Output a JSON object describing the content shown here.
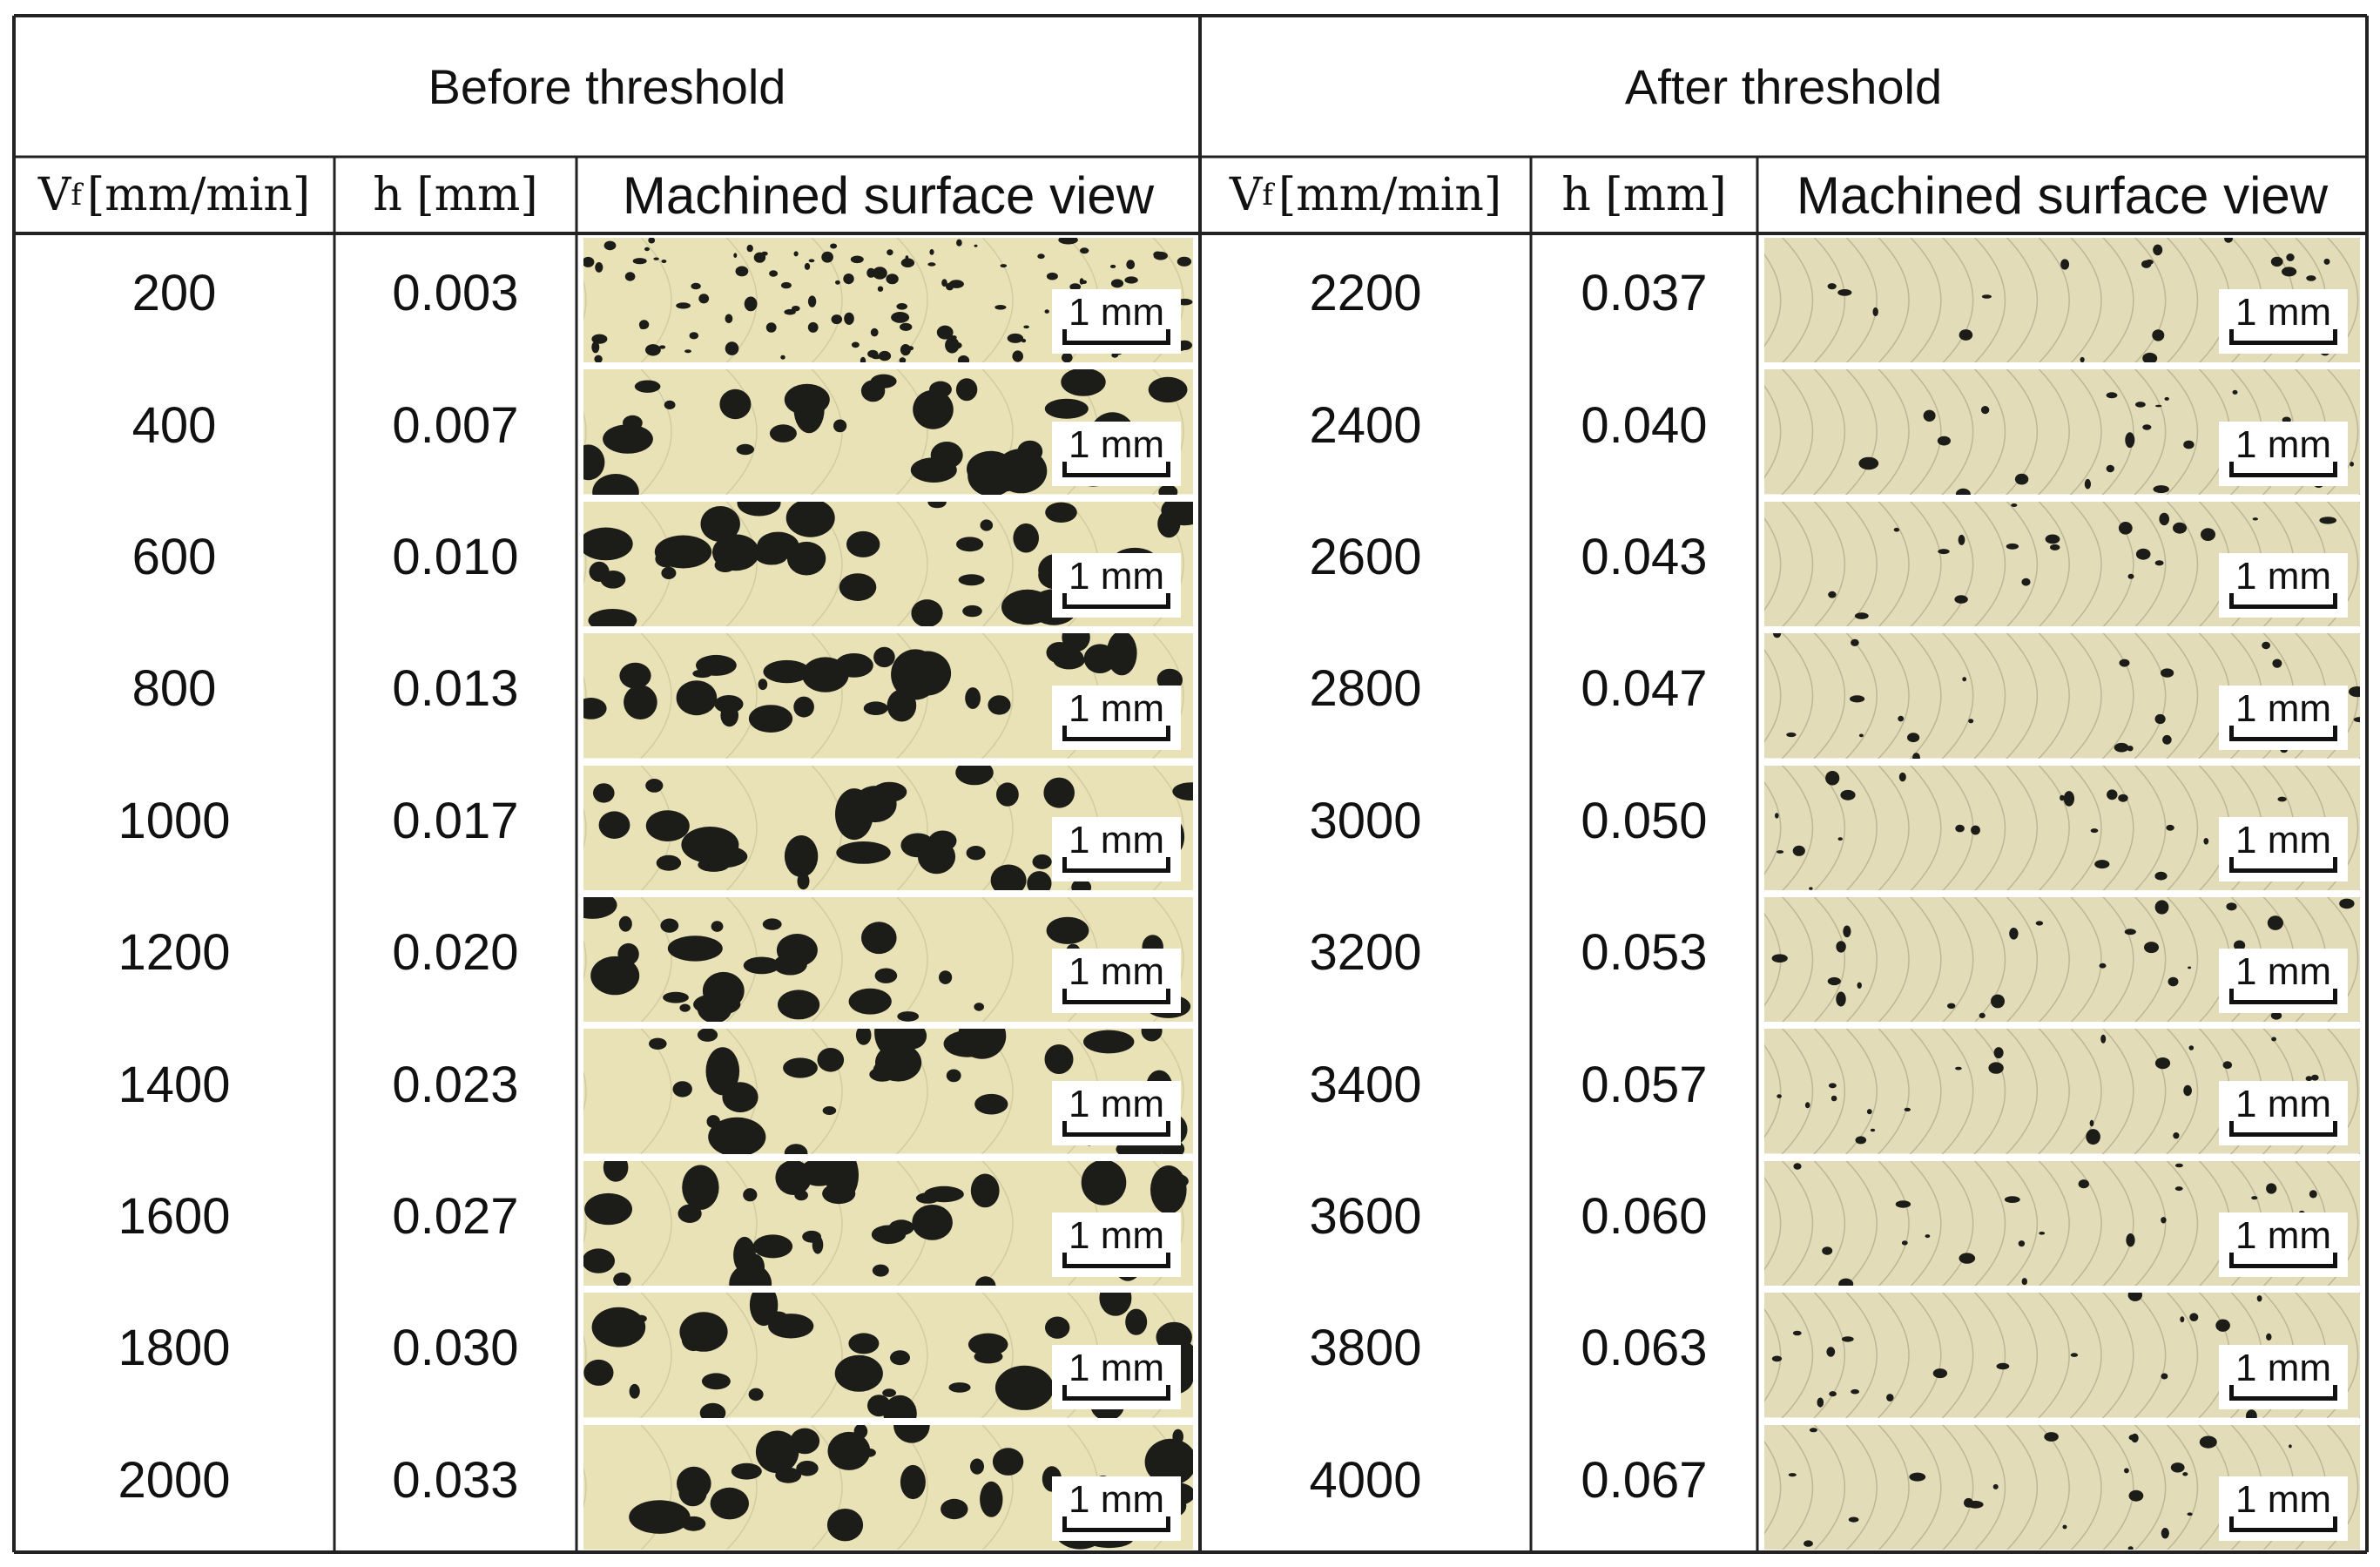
{
  "groups": [
    {
      "title": "Before threshold",
      "headers": {
        "vf_symbol": "V",
        "vf_sub": "f",
        "vf_unit": "[mm/min]",
        "h": "h [mm]",
        "view": "Machined surface view"
      },
      "rows": [
        {
          "vf": "200",
          "h": "0.003",
          "scale": "1 mm"
        },
        {
          "vf": "400",
          "h": "0.007",
          "scale": "1 mm"
        },
        {
          "vf": "600",
          "h": "0.010",
          "scale": "1 mm"
        },
        {
          "vf": "800",
          "h": "0.013",
          "scale": "1 mm"
        },
        {
          "vf": "1000",
          "h": "0.017",
          "scale": "1 mm"
        },
        {
          "vf": "1200",
          "h": "0.020",
          "scale": "1 mm"
        },
        {
          "vf": "1400",
          "h": "0.023",
          "scale": "1 mm"
        },
        {
          "vf": "1600",
          "h": "0.027",
          "scale": "1 mm"
        },
        {
          "vf": "1800",
          "h": "0.030",
          "scale": "1 mm"
        },
        {
          "vf": "2000",
          "h": "0.033",
          "scale": "1 mm"
        }
      ]
    },
    {
      "title": "After threshold",
      "headers": {
        "vf_symbol": "V",
        "vf_sub": "f",
        "vf_unit": "[mm/min]",
        "h": "h [mm]",
        "view": "Machined surface view"
      },
      "rows": [
        {
          "vf": "2200",
          "h": "0.037",
          "scale": "1 mm"
        },
        {
          "vf": "2400",
          "h": "0.040",
          "scale": "1 mm"
        },
        {
          "vf": "2600",
          "h": "0.043",
          "scale": "1 mm"
        },
        {
          "vf": "2800",
          "h": "0.047",
          "scale": "1 mm"
        },
        {
          "vf": "3000",
          "h": "0.050",
          "scale": "1 mm"
        },
        {
          "vf": "3200",
          "h": "0.053",
          "scale": "1 mm"
        },
        {
          "vf": "3400",
          "h": "0.057",
          "scale": "1 mm"
        },
        {
          "vf": "3600",
          "h": "0.060",
          "scale": "1 mm"
        },
        {
          "vf": "3800",
          "h": "0.063",
          "scale": "1 mm"
        },
        {
          "vf": "4000",
          "h": "0.067",
          "scale": "1 mm"
        }
      ]
    }
  ],
  "colors": {
    "surface_before": "#e9e2b6",
    "surface_after": "#e3dcb8",
    "spot": "#1c1c18",
    "grid": "#222222"
  }
}
